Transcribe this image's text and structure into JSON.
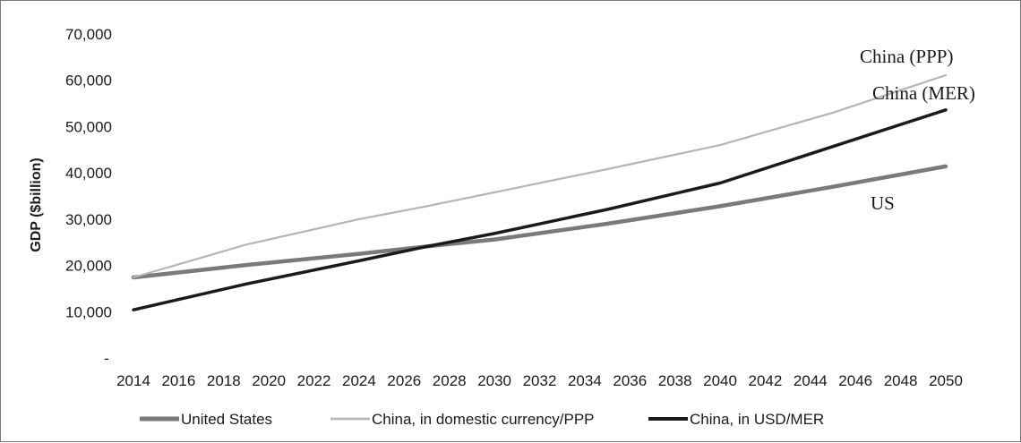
{
  "chart_data": {
    "type": "line",
    "title": "",
    "xlabel": "",
    "ylabel": "GDP ($billion)",
    "ylim": [
      0,
      70000
    ],
    "y_ticks": [
      0,
      10000,
      20000,
      30000,
      40000,
      50000,
      60000,
      70000
    ],
    "y_tick_labels": [
      "-",
      "10,000",
      "20,000",
      "30,000",
      "40,000",
      "50,000",
      "60,000",
      "70,000"
    ],
    "x_ticks": [
      2014,
      2016,
      2018,
      2020,
      2022,
      2024,
      2026,
      2028,
      2030,
      2032,
      2034,
      2036,
      2038,
      2040,
      2042,
      2044,
      2046,
      2048,
      2050
    ],
    "x": [
      2014,
      2019,
      2024,
      2027,
      2030,
      2035,
      2040,
      2045,
      2050
    ],
    "grid": false,
    "legend_position": "bottom",
    "series": [
      {
        "name": "United States",
        "color": "#7a7a7a",
        "values": [
          17400,
          20100,
          22500,
          24100,
          25600,
          29000,
          32800,
          37000,
          41400
        ]
      },
      {
        "name": "China, in domestic currency/PPP",
        "color": "#b5b5b5",
        "values": [
          17400,
          24500,
          30000,
          32800,
          35800,
          40800,
          46000,
          53000,
          61100
        ]
      },
      {
        "name": "China, in USD/MER",
        "color": "#1a1a1a",
        "values": [
          10400,
          16000,
          21000,
          24100,
          26900,
          32100,
          37800,
          45700,
          53600
        ]
      }
    ],
    "annotations": [
      {
        "text": "China (PPP)",
        "series_index": 1
      },
      {
        "text": "China (MER)",
        "series_index": 2
      },
      {
        "text": "US",
        "series_index": 0
      }
    ]
  }
}
